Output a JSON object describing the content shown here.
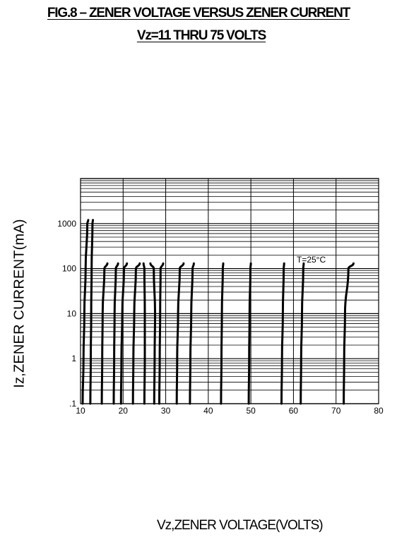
{
  "chart_data": {
    "type": "line",
    "title": "FIG.8 – ZENER VOLTAGE VERSUS ZENER CURRENT",
    "subtitle": "Vz=11 THRU 75 VOLTS",
    "xlabel": "Vz,ZENER VOLTAGE(VOLTS)",
    "ylabel": "Iz,ZENER CURRENT(mA)",
    "annotation": "T=25°C",
    "xlim": [
      10,
      80
    ],
    "ylim": [
      0.1,
      10000
    ],
    "yscale": "log",
    "grid": true,
    "x_ticks": [
      "10",
      "20",
      "30",
      "40",
      "50",
      "60",
      "70",
      "80"
    ],
    "y_ticks": [
      ".1",
      "1",
      "10",
      "100",
      "1000"
    ],
    "series": [
      {
        "points": [
          [
            10.5,
            0.1
          ],
          [
            10.7,
            1
          ],
          [
            10.9,
            10
          ],
          [
            11.2,
            100
          ],
          [
            11.6,
            1000
          ],
          [
            11.8,
            1200
          ]
        ]
      },
      {
        "points": [
          [
            12.3,
            0.1
          ],
          [
            12.4,
            1
          ],
          [
            12.5,
            10
          ],
          [
            12.6,
            100
          ],
          [
            12.8,
            1000
          ],
          [
            12.9,
            1200
          ]
        ]
      },
      {
        "points": [
          [
            15.0,
            0.1
          ],
          [
            15.1,
            1
          ],
          [
            15.2,
            10
          ],
          [
            15.6,
            100
          ],
          [
            16.3,
            130
          ]
        ]
      },
      {
        "points": [
          [
            17.8,
            0.1
          ],
          [
            17.9,
            1
          ],
          [
            18.0,
            10
          ],
          [
            18.3,
            100
          ],
          [
            18.8,
            130
          ]
        ]
      },
      {
        "points": [
          [
            19.5,
            0.1
          ],
          [
            19.6,
            1
          ],
          [
            19.8,
            10
          ],
          [
            20.2,
            100
          ],
          [
            20.9,
            130
          ]
        ]
      },
      {
        "points": [
          [
            22.3,
            0.1
          ],
          [
            22.4,
            1
          ],
          [
            22.6,
            10
          ],
          [
            23.0,
            100
          ],
          [
            23.9,
            130
          ]
        ]
      },
      {
        "points": [
          [
            25.0,
            0.1
          ],
          [
            25.1,
            1
          ],
          [
            25.1,
            10
          ],
          [
            25.0,
            100
          ],
          [
            24.8,
            130
          ]
        ]
      },
      {
        "points": [
          [
            27.3,
            0.1
          ],
          [
            27.4,
            1
          ],
          [
            27.5,
            10
          ],
          [
            27.2,
            100
          ],
          [
            26.4,
            130
          ]
        ]
      },
      {
        "points": [
          [
            28.5,
            0.1
          ],
          [
            28.6,
            1
          ],
          [
            28.7,
            10
          ],
          [
            28.8,
            100
          ],
          [
            29.4,
            130
          ]
        ]
      },
      {
        "points": [
          [
            32.6,
            0.1
          ],
          [
            32.7,
            1
          ],
          [
            32.9,
            10
          ],
          [
            33.3,
            100
          ],
          [
            34.2,
            130
          ]
        ]
      },
      {
        "points": [
          [
            35.7,
            0.1
          ],
          [
            35.8,
            1
          ],
          [
            36.0,
            10
          ],
          [
            36.3,
            100
          ],
          [
            36.6,
            130
          ]
        ]
      },
      {
        "points": [
          [
            43.0,
            0.1
          ],
          [
            43.1,
            1
          ],
          [
            43.2,
            10
          ],
          [
            43.4,
            100
          ],
          [
            43.5,
            130
          ]
        ]
      },
      {
        "points": [
          [
            49.5,
            0.1
          ],
          [
            49.6,
            1
          ],
          [
            49.7,
            10
          ],
          [
            49.9,
            100
          ],
          [
            50.0,
            130
          ]
        ]
      },
      {
        "points": [
          [
            57.2,
            0.1
          ],
          [
            57.3,
            1
          ],
          [
            57.5,
            10
          ],
          [
            57.7,
            100
          ],
          [
            57.8,
            130
          ]
        ]
      },
      {
        "points": [
          [
            61.7,
            0.1
          ],
          [
            61.8,
            1
          ],
          [
            62.0,
            10
          ],
          [
            62.3,
            100
          ],
          [
            62.4,
            130
          ]
        ]
      },
      {
        "points": [
          [
            71.8,
            0.1
          ],
          [
            71.9,
            1
          ],
          [
            72.1,
            10
          ],
          [
            72.9,
            100
          ],
          [
            74.1,
            130
          ]
        ]
      }
    ]
  }
}
